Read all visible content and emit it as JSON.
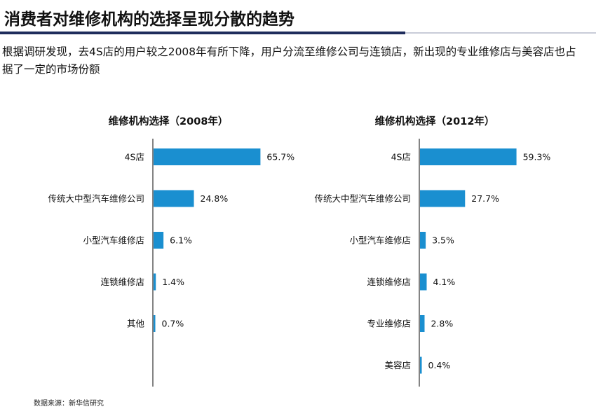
{
  "header": {
    "title": "消费者对维修机构的选择呈现分散的趋势",
    "subtitle": "根据调研发现，去4S店的用户较之2008年有所下降，用户分流至维修公司与连锁店，新出现的专业维修店与美容店也占据了一定的市场份额"
  },
  "source": "数据来源：新华信研究",
  "colors": {
    "bar": "#1a8fd0",
    "axis": "#333333",
    "title_rule": "#1f2d5c"
  },
  "chart_data": [
    {
      "type": "bar",
      "orientation": "horizontal",
      "title": "维修机构选择（2008年）",
      "categories": [
        "4S店",
        "传统大中型汽车维修公司",
        "小型汽车维修店",
        "连锁维修店",
        "其他"
      ],
      "values": [
        65.7,
        24.8,
        6.1,
        1.4,
        0.7
      ],
      "labels": [
        "65.7%",
        "24.8%",
        "6.1%",
        "1.4%",
        "0.7%"
      ],
      "unit": "%",
      "grid": false
    },
    {
      "type": "bar",
      "orientation": "horizontal",
      "title": "维修机构选择（2012年）",
      "categories": [
        "4S店",
        "传统大中型汽车维修公司",
        "小型汽车维修店",
        "连锁维修店",
        "专业维修店",
        "美容店"
      ],
      "values": [
        59.3,
        27.7,
        3.5,
        4.1,
        2.8,
        0.4
      ],
      "labels": [
        "59.3%",
        "27.7%",
        "3.5%",
        "4.1%",
        "2.8%",
        "0.4%"
      ],
      "unit": "%",
      "grid": false
    }
  ]
}
